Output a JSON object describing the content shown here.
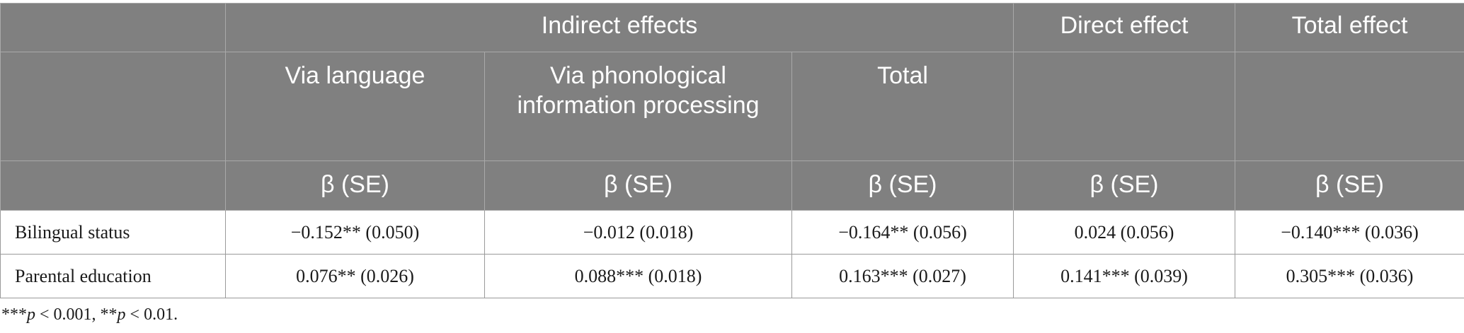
{
  "header": {
    "indirect_effects": "Indirect effects",
    "direct_effect": "Direct effect",
    "total_effect": "Total effect",
    "via_language": "Via language",
    "via_phonological": "Via phonological information processing",
    "total": "Total",
    "beta_se": "β (SE)"
  },
  "rows": [
    {
      "label": "Bilingual status",
      "via_language": "−0.152** (0.050)",
      "via_phonological": "−0.012 (0.018)",
      "indirect_total": "−0.164** (0.056)",
      "direct": "0.024 (0.056)",
      "total": "−0.140*** (0.036)"
    },
    {
      "label": "Parental education",
      "via_language": "0.076** (0.026)",
      "via_phonological": "0.088*** (0.018)",
      "indirect_total": "0.163*** (0.027)",
      "direct": "0.141*** (0.039)",
      "total": "0.305*** (0.036)"
    }
  ],
  "footnote": {
    "stars1": "***",
    "p": "p",
    "rest1": " < 0.001, **",
    "rest2": " < 0.01."
  }
}
